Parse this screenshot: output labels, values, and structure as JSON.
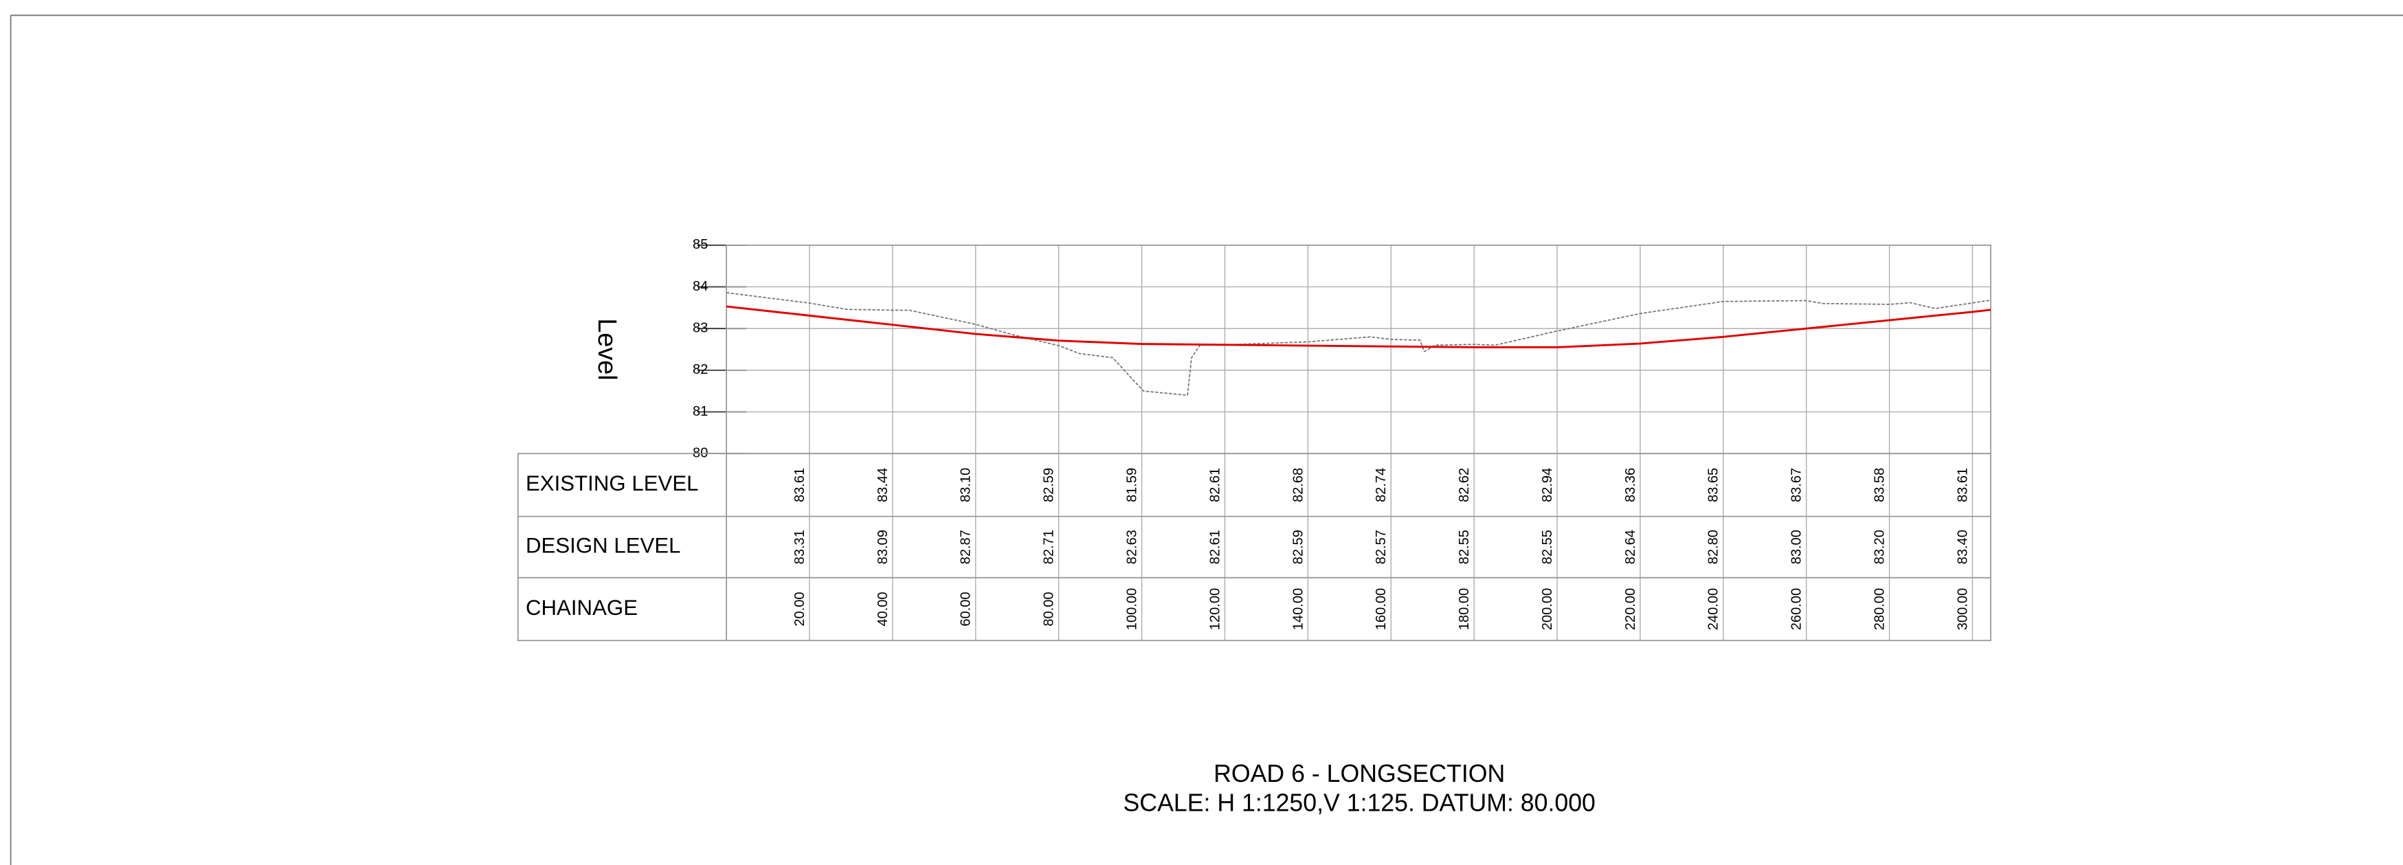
{
  "chart_data": {
    "type": "line",
    "title": "ROAD 6 - LONGSECTION",
    "subtitle": "SCALE: H 1:1250,V 1:125. DATUM: 80.000",
    "ylabel": "Level",
    "xlabel": "CHAINAGE",
    "xlim": [
      0,
      304.4
    ],
    "ylim": [
      80,
      85
    ],
    "yticks": [
      80,
      81,
      82,
      83,
      84,
      85
    ],
    "grid": true,
    "x": [
      20,
      40,
      60,
      80,
      100,
      120,
      140,
      160,
      180,
      200,
      220,
      240,
      260,
      280,
      300
    ],
    "x_value_labels": [
      "20.00",
      "40.00",
      "60.00",
      "80.00",
      "100.00",
      "120.00",
      "140.00",
      "160.00",
      "180.00",
      "200.00",
      "220.00",
      "240.00",
      "260.00",
      "280.00",
      "300.00"
    ],
    "series": [
      {
        "name": "EXISTING LEVEL",
        "color": "#777777",
        "dashed": true,
        "values": [
          83.61,
          83.44,
          83.1,
          82.59,
          81.59,
          82.61,
          82.68,
          82.74,
          82.62,
          82.94,
          83.36,
          83.65,
          83.67,
          83.58,
          83.61
        ],
        "value_labels": [
          "83.61",
          "83.44",
          "83.10",
          "82.59",
          "81.59",
          "82.61",
          "82.68",
          "82.74",
          "82.62",
          "82.94",
          "83.36",
          "83.65",
          "83.67",
          "83.58",
          "83.61"
        ],
        "profile_x": [
          0,
          20,
          29,
          40,
          44,
          60,
          69,
          80,
          85,
          93,
          100.4,
          111,
          112,
          114,
          120,
          140,
          155,
          160,
          167,
          168,
          169,
          170.5,
          180,
          185,
          200,
          220,
          240,
          260,
          264,
          280,
          285,
          291,
          304.4
        ],
        "profile_y": [
          83.86,
          83.61,
          83.46,
          83.44,
          83.44,
          83.1,
          82.85,
          82.59,
          82.4,
          82.3,
          81.5,
          81.4,
          82.3,
          82.6,
          82.61,
          82.68,
          82.8,
          82.74,
          82.72,
          82.45,
          82.5,
          82.6,
          82.62,
          82.6,
          82.94,
          83.36,
          83.65,
          83.67,
          83.6,
          83.58,
          83.62,
          83.48,
          83.68
        ]
      },
      {
        "name": "DESIGN LEVEL",
        "color": "#e00000",
        "dashed": false,
        "values": [
          83.31,
          83.09,
          82.87,
          82.71,
          82.63,
          82.61,
          82.59,
          82.57,
          82.55,
          82.55,
          82.64,
          82.8,
          83.0,
          83.2,
          83.4
        ],
        "value_labels": [
          "83.31",
          "83.09",
          "82.87",
          "82.71",
          "82.63",
          "82.61",
          "82.59",
          "82.57",
          "82.55",
          "82.55",
          "82.64",
          "82.80",
          "83.00",
          "83.20",
          "83.40"
        ],
        "profile_x": [
          0,
          20,
          40,
          60,
          80,
          100,
          120,
          140,
          160,
          180,
          200,
          220,
          240,
          260,
          280,
          300,
          304.4
        ],
        "profile_y": [
          83.53,
          83.31,
          83.09,
          82.87,
          82.71,
          82.63,
          82.61,
          82.59,
          82.57,
          82.55,
          82.55,
          82.64,
          82.8,
          83.0,
          83.2,
          83.4,
          83.45
        ]
      }
    ]
  }
}
